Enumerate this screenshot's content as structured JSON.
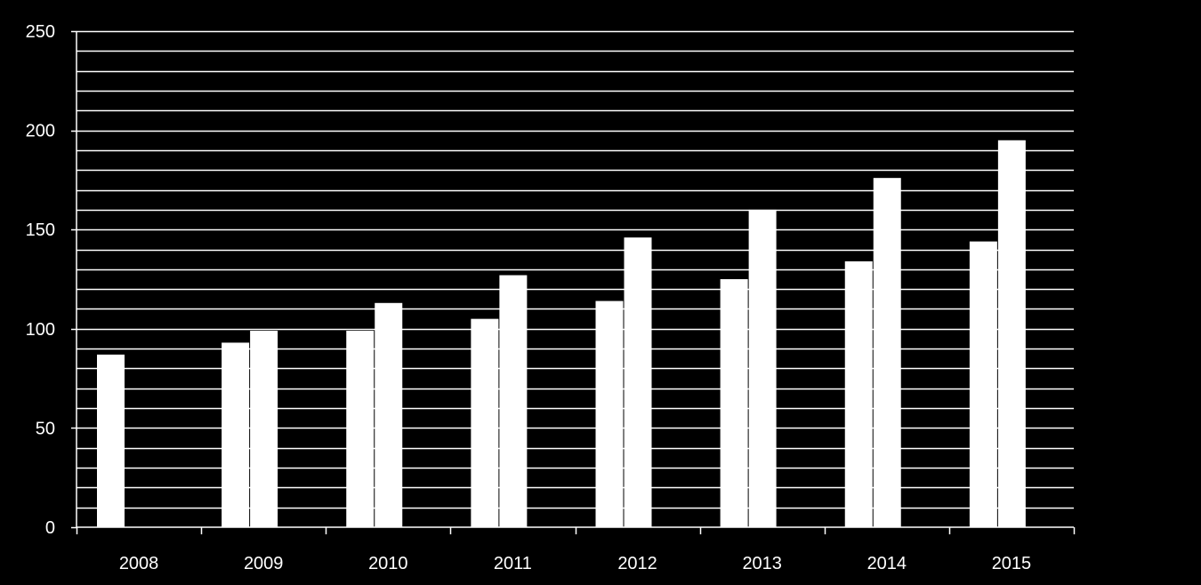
{
  "chart_data": {
    "type": "bar",
    "title": "",
    "xlabel": "",
    "ylabel": "",
    "categories": [
      "2008",
      "2009",
      "2010",
      "2011",
      "2012",
      "2013",
      "2014",
      "2015"
    ],
    "series": [
      {
        "values": [
          87,
          93,
          99,
          105,
          114,
          125,
          134,
          144
        ]
      },
      {
        "values": [
          null,
          99,
          113,
          127,
          146,
          160,
          176,
          195
        ]
      }
    ],
    "ylim": [
      0,
      250
    ],
    "y_ticks": [
      "0",
      "50",
      "100",
      "150",
      "200",
      "250"
    ],
    "y_tick_values": [
      0,
      50,
      100,
      150,
      200,
      250
    ],
    "minor_grid_step": 10,
    "grid": true,
    "legend": "none",
    "colors": {
      "background": "#000000",
      "bars": "#ffffff",
      "grid": "#ffffff",
      "text": "#ffffff"
    }
  }
}
